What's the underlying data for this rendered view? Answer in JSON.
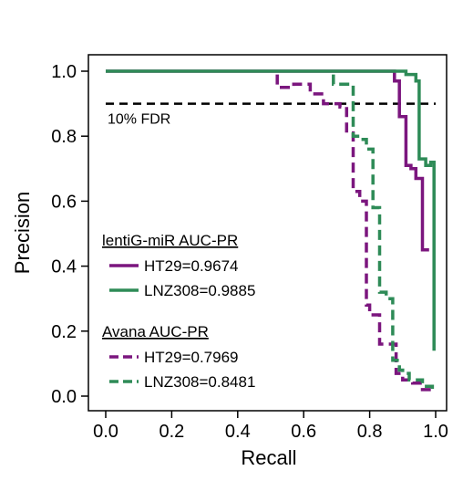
{
  "chart_data": {
    "type": "line",
    "title": "",
    "xlabel": "Recall",
    "ylabel": "Precision",
    "xlim": [
      0,
      1
    ],
    "ylim": [
      0,
      1
    ],
    "x_ticks": [
      "0.0",
      "0.2",
      "0.4",
      "0.6",
      "0.8",
      "1.0"
    ],
    "y_ticks": [
      "0.0",
      "0.2",
      "0.4",
      "0.6",
      "0.8",
      "1.0"
    ],
    "grid": false,
    "reference_line": {
      "y": 0.9,
      "label": "10% FDR",
      "style": "dashed",
      "color": "#000000"
    },
    "legend_groups": [
      {
        "title": "lentiG-miR AUC-PR",
        "entries": [
          "HT29=0.9674",
          "LNZ308=0.9885"
        ]
      },
      {
        "title": "Avana AUC-PR",
        "entries": [
          "HT29=0.7969",
          "LNZ308=0.8481"
        ]
      }
    ],
    "legend_position": "lower-left",
    "series": [
      {
        "name": "lentiG-miR HT29",
        "group": 0,
        "color": "#7b167e",
        "style": "solid",
        "points": [
          [
            0,
            1.0
          ],
          [
            0.875,
            1.0
          ],
          [
            0.875,
            0.97
          ],
          [
            0.89,
            0.97
          ],
          [
            0.89,
            0.86
          ],
          [
            0.91,
            0.86
          ],
          [
            0.91,
            0.71
          ],
          [
            0.925,
            0.71
          ],
          [
            0.925,
            0.7
          ],
          [
            0.94,
            0.7
          ],
          [
            0.94,
            0.67
          ],
          [
            0.96,
            0.67
          ],
          [
            0.96,
            0.45
          ],
          [
            0.98,
            0.45
          ],
          [
            0.98,
            0.45
          ]
        ]
      },
      {
        "name": "lentiG-miR LNZ308",
        "group": 0,
        "color": "#2e8b57",
        "style": "solid",
        "points": [
          [
            0,
            1.0
          ],
          [
            0.91,
            1.0
          ],
          [
            0.91,
            0.99
          ],
          [
            0.94,
            0.99
          ],
          [
            0.94,
            0.97
          ],
          [
            0.95,
            0.97
          ],
          [
            0.95,
            0.73
          ],
          [
            0.97,
            0.73
          ],
          [
            0.97,
            0.71
          ],
          [
            0.985,
            0.71
          ],
          [
            0.985,
            0.72
          ],
          [
            0.995,
            0.72
          ],
          [
            0.995,
            0.14
          ]
        ]
      },
      {
        "name": "Avana HT29",
        "group": 1,
        "color": "#7b167e",
        "style": "dashed",
        "points": [
          [
            0.52,
            0.99
          ],
          [
            0.52,
            0.95
          ],
          [
            0.57,
            0.95
          ],
          [
            0.57,
            0.96
          ],
          [
            0.62,
            0.96
          ],
          [
            0.62,
            0.93
          ],
          [
            0.66,
            0.93
          ],
          [
            0.66,
            0.9
          ],
          [
            0.71,
            0.9
          ],
          [
            0.71,
            0.89
          ],
          [
            0.73,
            0.89
          ],
          [
            0.73,
            0.81
          ],
          [
            0.75,
            0.81
          ],
          [
            0.75,
            0.63
          ],
          [
            0.77,
            0.63
          ],
          [
            0.77,
            0.6
          ],
          [
            0.79,
            0.6
          ],
          [
            0.79,
            0.28
          ],
          [
            0.8,
            0.28
          ],
          [
            0.8,
            0.25
          ],
          [
            0.83,
            0.25
          ],
          [
            0.83,
            0.16
          ],
          [
            0.88,
            0.16
          ],
          [
            0.88,
            0.07
          ],
          [
            0.9,
            0.07
          ],
          [
            0.9,
            0.05
          ],
          [
            0.93,
            0.05
          ],
          [
            0.93,
            0.04
          ],
          [
            0.96,
            0.04
          ],
          [
            0.96,
            0.02
          ],
          [
            0.99,
            0.02
          ]
        ]
      },
      {
        "name": "Avana LNZ308",
        "group": 1,
        "color": "#2e8b57",
        "style": "dashed",
        "points": [
          [
            0.69,
            0.99
          ],
          [
            0.69,
            0.96
          ],
          [
            0.75,
            0.96
          ],
          [
            0.75,
            0.8
          ],
          [
            0.77,
            0.8
          ],
          [
            0.77,
            0.79
          ],
          [
            0.79,
            0.79
          ],
          [
            0.79,
            0.76
          ],
          [
            0.81,
            0.76
          ],
          [
            0.81,
            0.58
          ],
          [
            0.83,
            0.58
          ],
          [
            0.83,
            0.32
          ],
          [
            0.85,
            0.32
          ],
          [
            0.85,
            0.3
          ],
          [
            0.87,
            0.3
          ],
          [
            0.87,
            0.11
          ],
          [
            0.89,
            0.11
          ],
          [
            0.89,
            0.08
          ],
          [
            0.9,
            0.08
          ],
          [
            0.9,
            0.07
          ],
          [
            0.92,
            0.07
          ],
          [
            0.92,
            0.05
          ],
          [
            0.96,
            0.05
          ],
          [
            0.96,
            0.03
          ],
          [
            0.99,
            0.03
          ],
          [
            0.99,
            0.02
          ]
        ]
      }
    ]
  }
}
